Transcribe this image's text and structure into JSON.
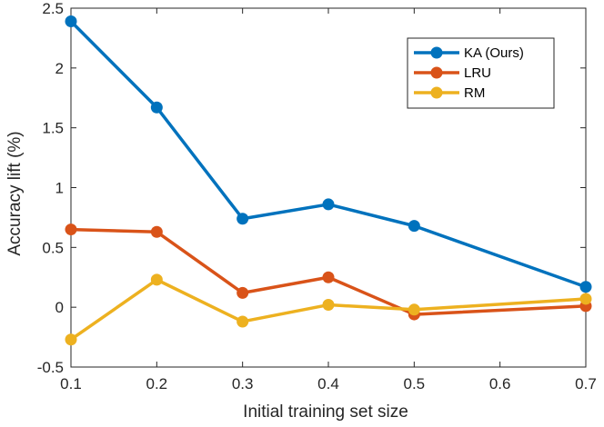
{
  "chart_data": {
    "type": "line",
    "title": "",
    "xlabel": "Initial training set size",
    "ylabel": "Accuracy lift (%)",
    "xlim": [
      0.1,
      0.7
    ],
    "ylim": [
      -0.5,
      2.5
    ],
    "xticks": [
      0.1,
      0.2,
      0.3,
      0.4,
      0.5,
      0.6,
      0.7
    ],
    "xtick_labels": [
      "0.1",
      "0.2",
      "0.3",
      "0.4",
      "0.5",
      "0.6",
      "0.7"
    ],
    "yticks": [
      -0.5,
      0,
      0.5,
      1,
      1.5,
      2,
      2.5
    ],
    "ytick_labels": [
      "-0.5",
      "0",
      "0.5",
      "1",
      "1.5",
      "2",
      "2.5"
    ],
    "grid": false,
    "legend_position": "top-right",
    "series": [
      {
        "name": "KA (Ours)",
        "color": "#0072BD",
        "x": [
          0.1,
          0.2,
          0.3,
          0.4,
          0.5,
          0.7
        ],
        "values": [
          2.39,
          1.67,
          0.74,
          0.86,
          0.68,
          0.17
        ]
      },
      {
        "name": "LRU",
        "color": "#D95319",
        "x": [
          0.1,
          0.2,
          0.3,
          0.4,
          0.5,
          0.7
        ],
        "values": [
          0.65,
          0.63,
          0.12,
          0.25,
          -0.06,
          0.01
        ]
      },
      {
        "name": "RM",
        "color": "#EDB120",
        "x": [
          0.1,
          0.2,
          0.3,
          0.4,
          0.5,
          0.7
        ],
        "values": [
          -0.27,
          0.23,
          -0.12,
          0.02,
          -0.02,
          0.07
        ]
      }
    ]
  }
}
